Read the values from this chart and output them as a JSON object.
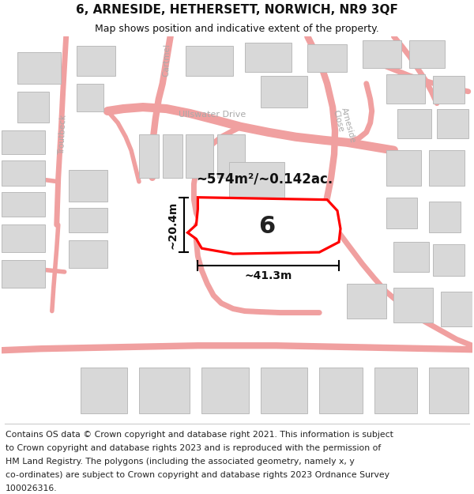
{
  "title": "6, ARNESIDE, HETHERSETT, NORWICH, NR9 3QF",
  "subtitle": "Map shows position and indicative extent of the property.",
  "area_label": "~574m²/~0.142ac.",
  "number_label": "6",
  "width_label": "~41.3m",
  "height_label": "~20.4m",
  "footer_lines": [
    "Contains OS data © Crown copyright and database right 2021. This information is subject",
    "to Crown copyright and database rights 2023 and is reproduced with the permission of",
    "HM Land Registry. The polygons (including the associated geometry, namely x, y",
    "co-ordinates) are subject to Crown copyright and database rights 2023 Ordnance Survey",
    "100026316."
  ],
  "bg_color": "#ffffff",
  "map_bg": "#ffffff",
  "building_color": "#d8d8d8",
  "building_edge": "#bbbbbb",
  "road_color": "#f0a0a0",
  "highlight_color": "#ff0000",
  "street_label_color": "#aaaaaa",
  "title_fontsize": 11,
  "subtitle_fontsize": 9,
  "footer_fontsize": 7.8
}
